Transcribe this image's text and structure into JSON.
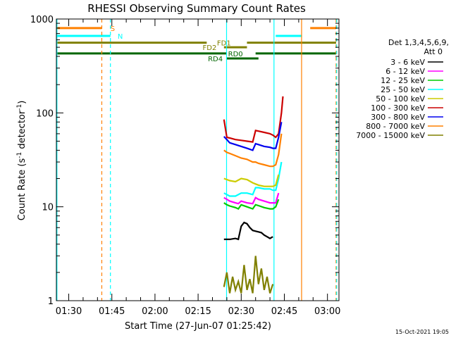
{
  "chart_data": {
    "type": "line",
    "title": "RHESSI Observing Summary Count Rates",
    "xlabel": "Start Time (27-Jun-07 01:25:42)",
    "ylabel_main": "Count Rate (s",
    "ylabel_sup1": "-1",
    "ylabel_mid": " detector",
    "ylabel_sup2": "-1",
    "ylabel_end": ")",
    "yscale": "log",
    "ylim": [
      1,
      1000
    ],
    "xlim_minutes": [
      85.7,
      184
    ],
    "x_ticks": [
      {
        "label": "01:30",
        "minutes": 90
      },
      {
        "label": "01:45",
        "minutes": 105
      },
      {
        "label": "02:00",
        "minutes": 120
      },
      {
        "label": "02:15",
        "minutes": 135
      },
      {
        "label": "02:30",
        "minutes": 150
      },
      {
        "label": "02:45",
        "minutes": 165
      },
      {
        "label": "03:00",
        "minutes": 180
      }
    ],
    "y_ticks": [
      {
        "label": "1",
        "value": 1
      },
      {
        "label": "10",
        "value": 10
      },
      {
        "label": "100",
        "value": 100
      },
      {
        "label": "1000",
        "value": 1000
      }
    ],
    "legend": {
      "header1": "Det 1,3,4,5,6,9,",
      "header2": "Att 0",
      "entries": [
        {
          "label": "3 - 6 keV",
          "color": "#000000"
        },
        {
          "label": "6 - 12 keV",
          "color": "#ff00ff"
        },
        {
          "label": "12 - 25 keV",
          "color": "#00cc00"
        },
        {
          "label": "25 - 50 keV",
          "color": "#00ffff"
        },
        {
          "label": "50 - 100 keV",
          "color": "#cccc00"
        },
        {
          "label": "100 - 300 keV",
          "color": "#cc0000"
        },
        {
          "label": "300 - 800 keV",
          "color": "#0000ee"
        },
        {
          "label": "800 - 7000 keV",
          "color": "#ff8000"
        },
        {
          "label": "7000 - 15000 keV",
          "color": "#808000"
        }
      ]
    },
    "flag_bars": [
      {
        "label": "S",
        "color": "#ff8000",
        "segments": [
          [
            86,
            101.5
          ],
          [
            174,
            183
          ]
        ],
        "value": 800
      },
      {
        "label": "N",
        "color": "#00ffff",
        "segments": [
          [
            86,
            104.5
          ],
          [
            162,
            171
          ]
        ],
        "value": 660
      },
      {
        "label": "FD1",
        "color": "#808000",
        "segments": [
          [
            86,
            138
          ],
          [
            152,
            183
          ]
        ],
        "value": 560
      },
      {
        "label": "FD2",
        "color": "#808000",
        "segments": [
          [
            144,
            152
          ]
        ],
        "value": 500
      },
      {
        "label": "RD0",
        "color": "#006600",
        "segments": [
          [
            86,
            145
          ],
          [
            155,
            183
          ]
        ],
        "value": 430
      },
      {
        "label": "RD4",
        "color": "#006600",
        "segments": [
          [
            145,
            156
          ]
        ],
        "value": 380
      }
    ],
    "vertical_lines": [
      {
        "minutes": 85.9,
        "color": "#00ffff",
        "dashed": false
      },
      {
        "minutes": 101.5,
        "color": "#ff8000",
        "dashed": true
      },
      {
        "minutes": 104.5,
        "color": "#00ffff",
        "dashed": true
      },
      {
        "minutes": 144.9,
        "color": "#00ffff",
        "dashed": false
      },
      {
        "minutes": 161.4,
        "color": "#00ffff",
        "dashed": false
      },
      {
        "minutes": 171,
        "color": "#ff8000",
        "dashed": false
      },
      {
        "minutes": 183,
        "color": "#ff8000",
        "dashed": true
      },
      {
        "minutes": 183.2,
        "color": "#00ffff",
        "dashed": true
      }
    ],
    "series": [
      {
        "name": "3 - 6 keV",
        "color": "#000000",
        "x": [
          144,
          146,
          148,
          149,
          150,
          151,
          152,
          153,
          154,
          155,
          156,
          157,
          158,
          159,
          160,
          161
        ],
        "y": [
          4.5,
          4.5,
          4.6,
          4.5,
          6.2,
          6.8,
          6.6,
          6.0,
          5.6,
          5.5,
          5.4,
          5.3,
          5.0,
          4.8,
          4.6,
          4.8
        ]
      },
      {
        "name": "6 - 12 keV",
        "color": "#ff00ff",
        "x": [
          144,
          145,
          146,
          148,
          149,
          150,
          152,
          154,
          155,
          156,
          158,
          160,
          161,
          162,
          163
        ],
        "y": [
          12.5,
          12,
          11.5,
          11,
          10.8,
          11.5,
          11,
          10.8,
          12.5,
          12,
          11.5,
          11,
          11,
          11,
          14
        ]
      },
      {
        "name": "12 - 25 keV",
        "color": "#00cc00",
        "x": [
          144,
          145,
          146,
          148,
          149,
          150,
          152,
          154,
          155,
          156,
          158,
          160,
          161,
          162,
          163
        ],
        "y": [
          11,
          10.5,
          10.2,
          9.8,
          9.5,
          10.5,
          10,
          9.5,
          10.5,
          10.3,
          9.8,
          9.5,
          9.5,
          10,
          12
        ]
      },
      {
        "name": "25 - 50 keV",
        "color": "#00ffff",
        "x": [
          144,
          145,
          146,
          148,
          150,
          152,
          154,
          155,
          156,
          158,
          160,
          161,
          162,
          163,
          164
        ],
        "y": [
          14,
          13.5,
          13,
          13,
          14,
          14,
          13.5,
          16,
          16,
          15.5,
          15.5,
          15,
          15,
          20,
          30
        ]
      },
      {
        "name": "50 - 100 keV",
        "color": "#cccc00",
        "x": [
          144,
          145,
          146,
          148,
          150,
          152,
          154,
          155,
          156,
          158,
          160,
          161,
          162,
          163
        ],
        "y": [
          20,
          19.5,
          19,
          18.5,
          20,
          19.5,
          18,
          17.5,
          17,
          16.5,
          16.5,
          16.5,
          17,
          22
        ]
      },
      {
        "name": "100 - 300 keV",
        "color": "#cc0000",
        "x": [
          144,
          144.3,
          145,
          146,
          148,
          150,
          152,
          154,
          155,
          156,
          158,
          160,
          161,
          162,
          163,
          164,
          164.5
        ],
        "y": [
          85,
          75,
          55,
          54,
          52,
          51,
          50,
          49,
          65,
          64,
          62,
          60,
          58,
          55,
          60,
          100,
          150
        ]
      },
      {
        "name": "300 - 800 keV",
        "color": "#0000ee",
        "x": [
          144,
          145,
          146,
          148,
          150,
          152,
          154,
          155,
          156,
          158,
          160,
          161,
          162,
          163,
          164
        ],
        "y": [
          56,
          52,
          48,
          46,
          44,
          42,
          40,
          47,
          46,
          44,
          43,
          42,
          42,
          55,
          80
        ]
      },
      {
        "name": "800 - 7000 keV",
        "color": "#ff8000",
        "x": [
          144,
          145,
          146,
          148,
          150,
          152,
          154,
          155,
          156,
          158,
          160,
          161,
          162,
          163,
          164
        ],
        "y": [
          40,
          38,
          37,
          35,
          33,
          32,
          30,
          30,
          29,
          28,
          27,
          27,
          28,
          36,
          60
        ]
      },
      {
        "name": "7000 - 15000 keV",
        "color": "#808000",
        "x": [
          144,
          145,
          146,
          147,
          148,
          149,
          150,
          151,
          152,
          153,
          154,
          155,
          156,
          157,
          158,
          159,
          160,
          161
        ],
        "y": [
          1.4,
          2,
          1.2,
          1.8,
          1.3,
          1.6,
          1.2,
          2.4,
          1.3,
          1.7,
          1.2,
          3,
          1.5,
          2.2,
          1.3,
          1.8,
          1.2,
          1.5
        ]
      }
    ]
  },
  "timestamp": "15-Oct-2021 19:05"
}
